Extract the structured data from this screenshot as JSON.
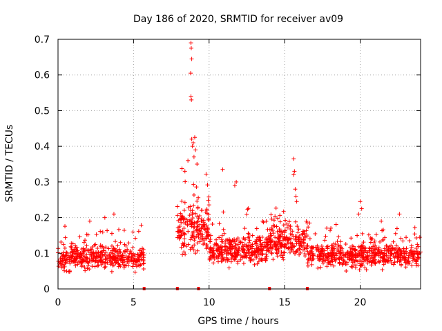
{
  "chart_data": {
    "type": "scatter",
    "title": "Day 186 of 2020, SRMTID for receiver av09",
    "xlabel": "GPS time / hours",
    "ylabel": "SRMTID / TECUs",
    "xlim": [
      0,
      24
    ],
    "ylim": [
      0,
      0.7
    ],
    "xticks": [
      0,
      5,
      10,
      15,
      20
    ],
    "yticks": [
      0,
      0.1,
      0.2,
      0.3,
      0.4,
      0.5,
      0.6,
      0.7
    ],
    "grid": true,
    "marker": "+",
    "series_color": "#ff0000",
    "segments": [
      {
        "x_start": 0.0,
        "x_end": 5.7,
        "base": 0.088,
        "spread": 0.03,
        "count": 430
      },
      {
        "x_start": 7.9,
        "x_end": 10.0,
        "base": 0.17,
        "spread": 0.06,
        "count": 190
      },
      {
        "x_start": 10.0,
        "x_end": 14.0,
        "base": 0.11,
        "spread": 0.04,
        "count": 330
      },
      {
        "x_start": 14.0,
        "x_end": 16.5,
        "base": 0.13,
        "spread": 0.04,
        "count": 210
      },
      {
        "x_start": 16.5,
        "x_end": 24.0,
        "base": 0.095,
        "spread": 0.03,
        "count": 560
      }
    ],
    "outliers": [
      {
        "x": 8.8,
        "y": 0.69
      },
      {
        "x": 8.82,
        "y": 0.675
      },
      {
        "x": 8.85,
        "y": 0.645
      },
      {
        "x": 8.78,
        "y": 0.605
      },
      {
        "x": 8.8,
        "y": 0.54
      },
      {
        "x": 8.83,
        "y": 0.53
      },
      {
        "x": 8.85,
        "y": 0.42
      },
      {
        "x": 8.95,
        "y": 0.41
      },
      {
        "x": 9.05,
        "y": 0.425
      },
      {
        "x": 9.1,
        "y": 0.39
      },
      {
        "x": 8.9,
        "y": 0.4
      },
      {
        "x": 9.0,
        "y": 0.37
      },
      {
        "x": 9.2,
        "y": 0.35
      },
      {
        "x": 8.6,
        "y": 0.36
      },
      {
        "x": 8.4,
        "y": 0.33
      },
      {
        "x": 10.9,
        "y": 0.335
      },
      {
        "x": 11.8,
        "y": 0.3
      },
      {
        "x": 11.7,
        "y": 0.29
      },
      {
        "x": 15.6,
        "y": 0.365
      },
      {
        "x": 15.65,
        "y": 0.33
      },
      {
        "x": 15.6,
        "y": 0.32
      },
      {
        "x": 15.7,
        "y": 0.28
      },
      {
        "x": 15.75,
        "y": 0.26
      },
      {
        "x": 15.8,
        "y": 0.245
      },
      {
        "x": 20.0,
        "y": 0.245
      },
      {
        "x": 20.1,
        "y": 0.225
      },
      {
        "x": 19.9,
        "y": 0.21
      },
      {
        "x": 3.1,
        "y": 0.2
      },
      {
        "x": 3.7,
        "y": 0.21
      },
      {
        "x": 2.1,
        "y": 0.19
      },
      {
        "x": 22.6,
        "y": 0.21
      },
      {
        "x": 21.4,
        "y": 0.19
      }
    ],
    "zero_points": [
      5.7,
      7.9,
      9.3,
      14.0,
      16.5
    ]
  }
}
